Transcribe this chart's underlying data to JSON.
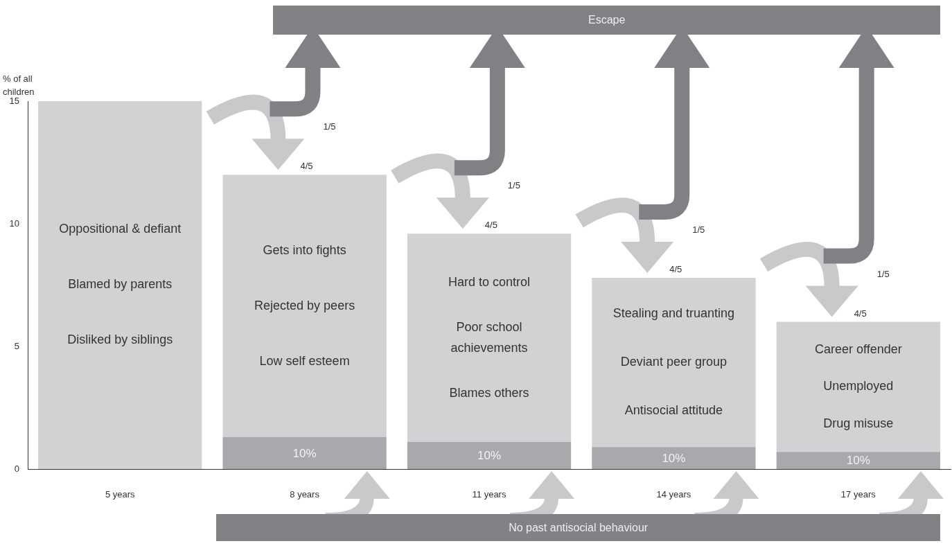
{
  "chart_data": {
    "type": "bar",
    "stacked": true,
    "ylabel": "% of all children",
    "categories": [
      "5 years",
      "8 years",
      "11 years",
      "14 years",
      "17 years"
    ],
    "series": [
      {
        "color": "#a7a9ac",
        "values": [
          null,
          1.3,
          1.1,
          0.9,
          0.7
        ]
      },
      {
        "color": "#d1d2d4",
        "values": [
          15,
          10.7,
          8.5,
          6.9,
          5.3
        ]
      }
    ],
    "ylim": [
      0,
      15
    ],
    "yticks": [
      0,
      5,
      10,
      15
    ],
    "annotations": [
      "Escape",
      "No past antisocial behaviour",
      "1/5",
      "4/5",
      "1/5",
      "4/5",
      "1/5",
      "4/5",
      "1/5",
      "4/5",
      "Oppositional & defiant",
      "Blamed by parents",
      "Disliked by siblings",
      "Gets into fights",
      "Rejected by peers",
      "Low self esteem",
      "Hard to control",
      "Poor school\nachievements",
      "Blames others",
      "Stealing and truanting",
      "Deviant peer group",
      "Antisocial attitude",
      "Career offender",
      "Unemployed",
      "Drug misuse",
      "10%",
      "10%",
      "10%",
      "10%"
    ]
  }
}
